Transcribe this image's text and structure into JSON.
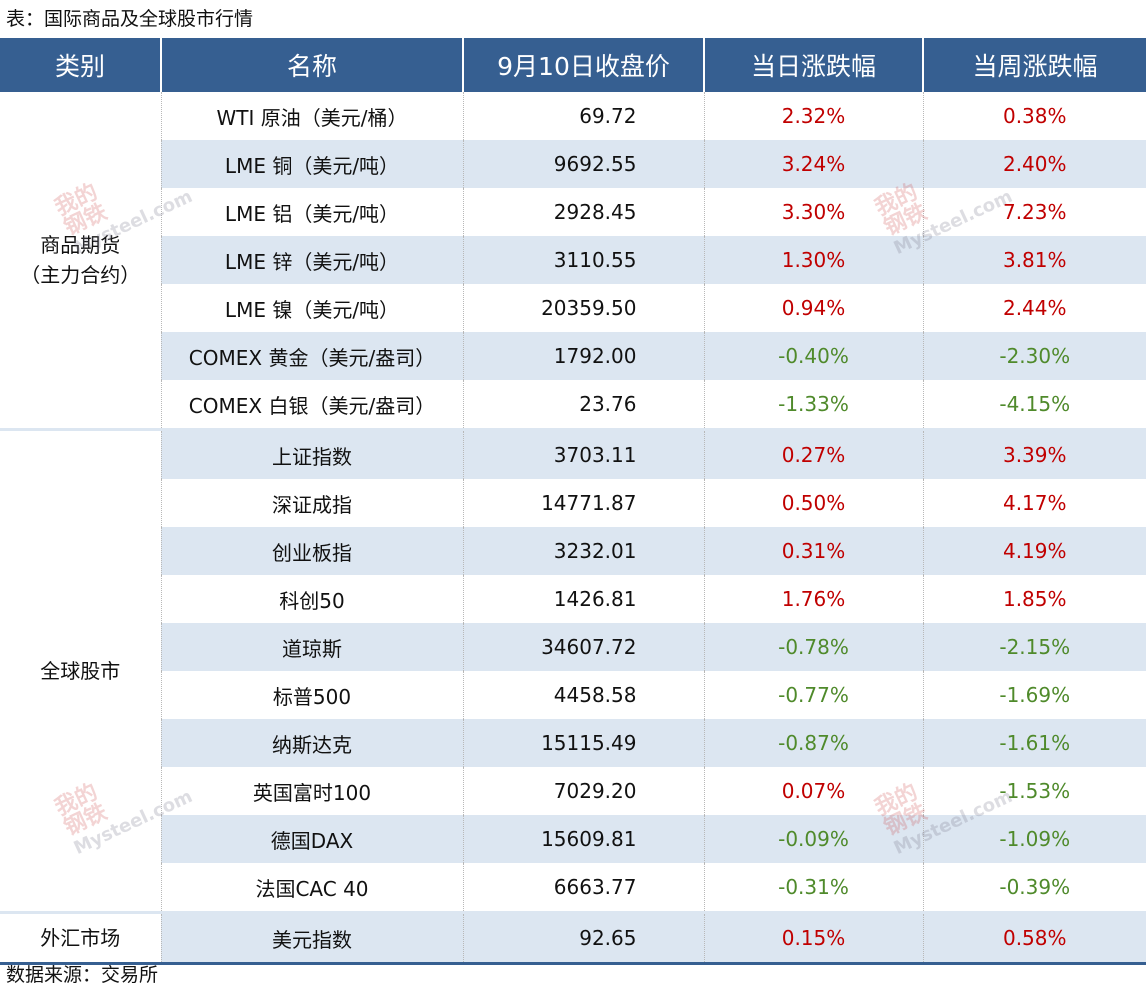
{
  "title": "表：国际商品及全球股市行情",
  "source": "数据来源：交易所",
  "watermark": "我的钢铁 Mysteel.com",
  "colors": {
    "header_bg": "#365f91",
    "stripe": "#dce6f1",
    "up": "#c00000",
    "down": "#4f8a2b"
  },
  "headers": [
    "类别",
    "名称",
    "9月10日收盘价",
    "当日涨跌幅",
    "当周涨跌幅"
  ],
  "groups": [
    {
      "category": "商品期货\n（主力合约）",
      "category_line1": "商品期货",
      "category_line2": "（主力合约）"
    },
    {
      "category": "全球股市"
    },
    {
      "category": "外汇市场"
    }
  ],
  "rows": [
    {
      "name": "WTI 原油（美元/桶）",
      "price": "69.72",
      "daily": "2.32%",
      "weekly": "0.38%"
    },
    {
      "name": "LME 铜（美元/吨）",
      "price": "9692.55",
      "daily": "3.24%",
      "weekly": "2.40%"
    },
    {
      "name": "LME 铝（美元/吨）",
      "price": "2928.45",
      "daily": "3.30%",
      "weekly": "7.23%"
    },
    {
      "name": "LME 锌（美元/吨）",
      "price": "3110.55",
      "daily": "1.30%",
      "weekly": "3.81%"
    },
    {
      "name": "LME 镍（美元/吨）",
      "price": "20359.50",
      "daily": "0.94%",
      "weekly": "2.44%"
    },
    {
      "name": "COMEX 黄金（美元/盎司）",
      "price": "1792.00",
      "daily": "-0.40%",
      "weekly": "-2.30%"
    },
    {
      "name": "COMEX 白银（美元/盎司）",
      "price": "23.76",
      "daily": "-1.33%",
      "weekly": "-4.15%"
    },
    {
      "name": "上证指数",
      "price": "3703.11",
      "daily": "0.27%",
      "weekly": "3.39%"
    },
    {
      "name": "深证成指",
      "price": "14771.87",
      "daily": "0.50%",
      "weekly": "4.17%"
    },
    {
      "name": "创业板指",
      "price": "3232.01",
      "daily": "0.31%",
      "weekly": "4.19%"
    },
    {
      "name": "科创50",
      "price": "1426.81",
      "daily": "1.76%",
      "weekly": "1.85%"
    },
    {
      "name": "道琼斯",
      "price": "34607.72",
      "daily": "-0.78%",
      "weekly": "-2.15%"
    },
    {
      "name": "标普500",
      "price": "4458.58",
      "daily": "-0.77%",
      "weekly": "-1.69%"
    },
    {
      "name": "纳斯达克",
      "price": "15115.49",
      "daily": "-0.87%",
      "weekly": "-1.61%"
    },
    {
      "name": "英国富时100",
      "price": "7029.20",
      "daily": "0.07%",
      "weekly": "-1.53%"
    },
    {
      "name": "德国DAX",
      "price": "15609.81",
      "daily": "-0.09%",
      "weekly": "-1.09%"
    },
    {
      "name": "法国CAC 40",
      "price": "6663.77",
      "daily": "-0.31%",
      "weekly": "-0.39%"
    },
    {
      "name": "美元指数",
      "price": "92.65",
      "daily": "0.15%",
      "weekly": "0.58%"
    }
  ]
}
